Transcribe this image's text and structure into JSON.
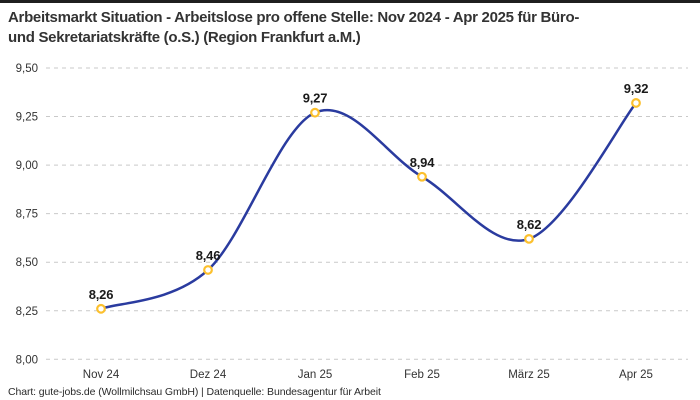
{
  "header": {
    "title_lines": [
      "Arbeitsmarkt Situation - Arbeitslose pro offene Stelle: Nov 2024 - Apr 2025 für Büro-",
      "und Sekretariatskräfte (o.S.) (Region Frankfurt a.M.)"
    ]
  },
  "footer": {
    "credit": "Chart: gute-jobs.de (Wollmilchsau GmbH) | Datenquelle: Bundesagentur für Arbeit"
  },
  "chart_data": {
    "type": "line",
    "title": "Arbeitsmarkt Situation - Arbeitslose pro offene Stelle: Nov 2024 - Apr 2025 für Büro- und Sekretariatskräfte (o.S.) (Region Frankfurt a.M.)",
    "categories": [
      "Nov 24",
      "Dez 24",
      "Jan 25",
      "Feb 25",
      "März 25",
      "Apr 25"
    ],
    "values": [
      8.26,
      8.46,
      9.27,
      8.94,
      8.62,
      9.32
    ],
    "value_labels": [
      "8,26",
      "8,46",
      "9,27",
      "8,94",
      "8,62",
      "9,32"
    ],
    "ylim": [
      8.0,
      9.5
    ],
    "ytick_step": 0.25,
    "ytick_labels": [
      "8,00",
      "8,25",
      "8,50",
      "8,75",
      "9,00",
      "9,25",
      "9,50"
    ],
    "grid": "horizontal-dashed",
    "legend": "none",
    "line_smooth": true,
    "colors": {
      "line": "#2a3b9f",
      "marker_ring": "#fcc02d",
      "marker_fill": "#ffffff",
      "grid": "#c9c9c9",
      "value_text": "#1a1a1a",
      "axis_text": "#333333",
      "accent_bar": "#1f1f1f"
    }
  }
}
